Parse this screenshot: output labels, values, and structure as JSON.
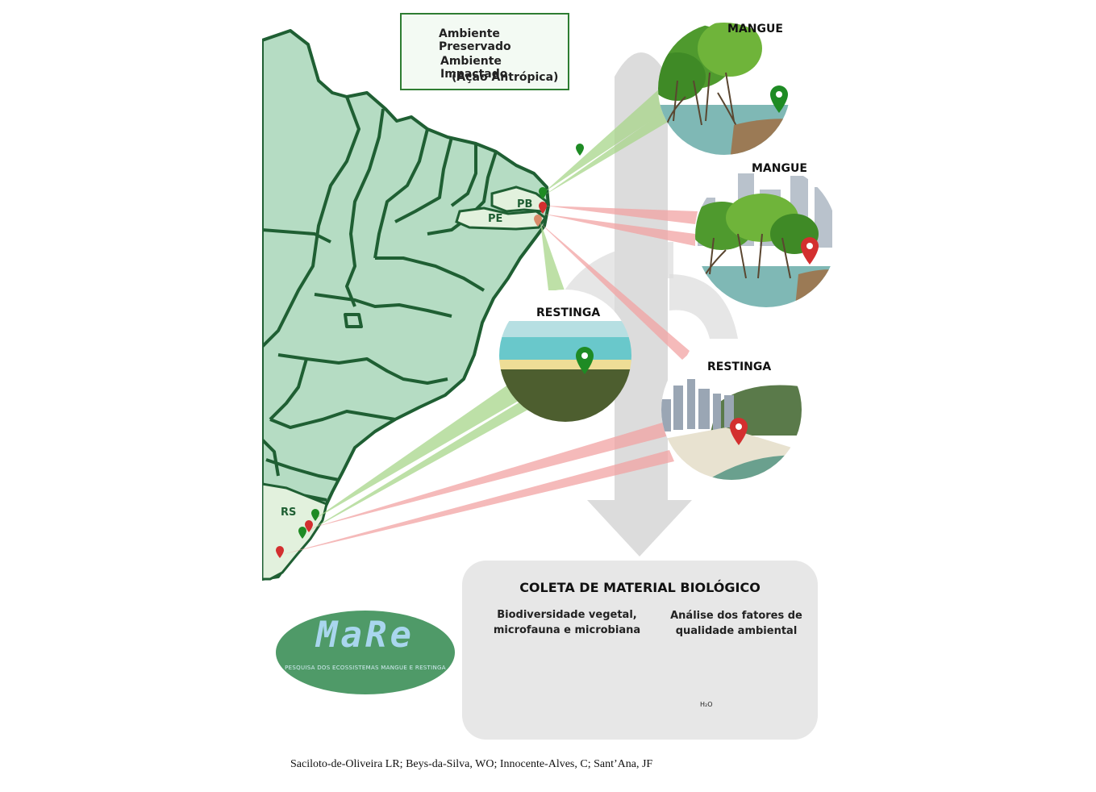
{
  "legend": {
    "preserved": "Ambiente Preservado",
    "impacted_line1": "Ambiente Impactado",
    "impacted_line2": "(Ação Antrópica)",
    "preserved_color": "#1e8b24",
    "impacted_color": "#d32f2f"
  },
  "map": {
    "states": {
      "pb": "PB",
      "pe": "PE",
      "rs": "RS"
    },
    "land_color": "#b5dcc3",
    "highlight_color": "#e2f1dd",
    "border_color": "#1f5f33"
  },
  "sites": {
    "mangue_preserved": "MANGUE",
    "mangue_impacted": "MANGUE",
    "restinga_preserved": "RESTINGA",
    "restinga_impacted": "RESTINGA"
  },
  "collection": {
    "title": "COLETA DE MATERIAL BIOLÓGICO",
    "left_line1": "Biodiversidade vegetal,",
    "left_line2": "microfauna e microbiana",
    "right_line1": "Análise dos fatores de",
    "right_line2": "qualidade ambiental",
    "h2o": "H₂O"
  },
  "logo": {
    "name": "MaRe",
    "subtitle": "PESQUISA DOS ECOSSISTEMAS MANGUE E RESTINGA"
  },
  "credits": "Saciloto-de-Oliveira LR; Beys-da-Silva, WO; Innocente-Alves, C; Sant’Ana, JF"
}
